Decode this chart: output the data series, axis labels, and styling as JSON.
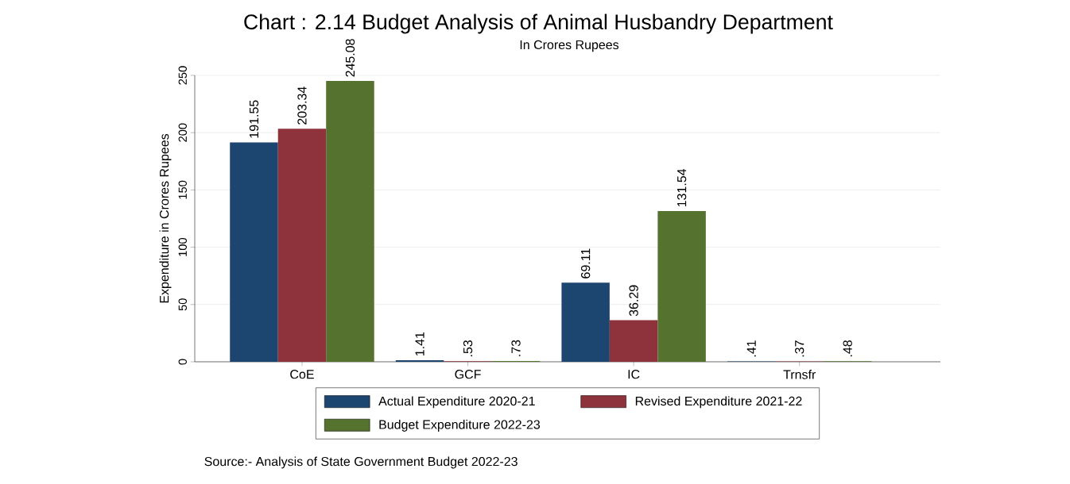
{
  "chart_data": {
    "type": "bar",
    "title": "Chart : 2.14 Budget Analysis of Animal Husbandry Department",
    "subtitle": "In Crores Rupees",
    "ylabel": "Expenditure in Crores Rupees",
    "categories": [
      "CoE",
      "GCF",
      "IC",
      "Trnsfr"
    ],
    "series": [
      {
        "name": "Actual Expenditure 2020-21",
        "color": "#1c4670",
        "values": [
          191.55,
          1.41,
          69.11,
          0.41
        ],
        "value_labels": [
          "191.55",
          "1.41",
          "69.11",
          ".41"
        ]
      },
      {
        "name": "Revised Expenditure 2021-22",
        "color": "#8e323b",
        "values": [
          203.34,
          0.53,
          36.29,
          0.37
        ],
        "value_labels": [
          "203.34",
          ".53",
          "36.29",
          ".37"
        ]
      },
      {
        "name": "Budget Expenditure 2022-23",
        "color": "#55722e",
        "values": [
          245.08,
          0.73,
          131.54,
          0.48
        ],
        "value_labels": [
          "245.08",
          ".73",
          "131.54",
          ".48"
        ]
      }
    ],
    "ylim": [
      0,
      250
    ],
    "yticks": [
      0,
      50,
      100,
      150,
      200,
      250
    ],
    "grid": "y",
    "legend": "bottom",
    "annotations": [
      "Source:- Analysis of State Government Budget 2022-23"
    ]
  }
}
